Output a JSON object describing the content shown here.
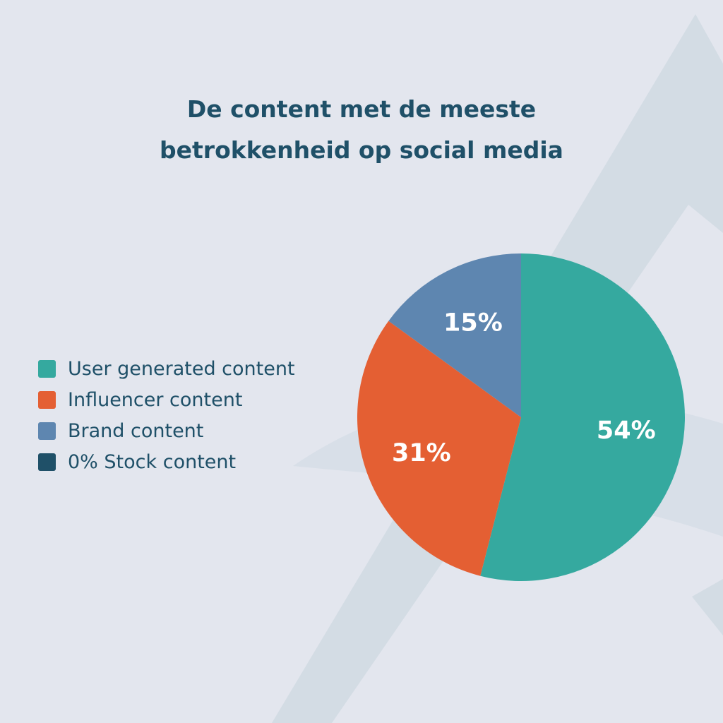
{
  "chart_data": {
    "type": "pie",
    "title": "De content met de meeste betrokkenheid op social media",
    "title_lines": [
      "De content met de meeste",
      "betrokkenheid op social media"
    ],
    "legend_placement": "left",
    "slices": [
      {
        "name": "User generated content",
        "value": 54,
        "label": "54%",
        "color": "#35a99f"
      },
      {
        "name": "Influencer content",
        "value": 31,
        "label": "31%",
        "color": "#e45f33"
      },
      {
        "name": "Brand content",
        "value": 15,
        "label": "15%",
        "color": "#5e86b0"
      },
      {
        "name": "0% Stock content",
        "value": 0,
        "label": "",
        "color": "#1f5068"
      }
    ]
  },
  "colors": {
    "background": "#e3e6ee",
    "background_shape": "#d3dce4",
    "text": "#1f5068"
  }
}
